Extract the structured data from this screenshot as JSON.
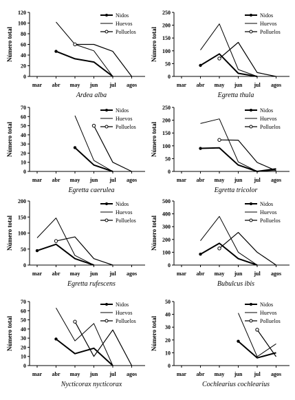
{
  "chart_data": [
    {
      "type": "line",
      "species": "Ardea alba",
      "ylabel": "Número total",
      "categories": [
        "mar",
        "abr",
        "may",
        "jun",
        "jul",
        "agos"
      ],
      "ylim": [
        0,
        120
      ],
      "yticks": [
        0,
        20,
        40,
        60,
        80,
        100,
        120
      ],
      "series": [
        {
          "name": "Nidos",
          "values": [
            null,
            47,
            33,
            27,
            0,
            null
          ]
        },
        {
          "name": "Huevos",
          "values": [
            null,
            102,
            60,
            48,
            0,
            null
          ]
        },
        {
          "name": "Polluelos",
          "values": [
            null,
            null,
            60,
            60,
            47,
            0
          ]
        }
      ]
    },
    {
      "type": "line",
      "species": "Egretta thula",
      "ylabel": "Número total",
      "categories": [
        "mar",
        "abr",
        "may",
        "jun",
        "jul",
        "agos"
      ],
      "ylim": [
        0,
        250
      ],
      "yticks": [
        0,
        50,
        100,
        150,
        200,
        250
      ],
      "series": [
        {
          "name": "Nidos",
          "values": [
            null,
            43,
            88,
            12,
            0,
            null
          ]
        },
        {
          "name": "Huevos",
          "values": [
            null,
            103,
            205,
            27,
            0,
            null
          ]
        },
        {
          "name": "Polluelos",
          "values": [
            null,
            null,
            70,
            133,
            15,
            0
          ]
        }
      ]
    },
    {
      "type": "line",
      "species": "Egretta caerulea",
      "ylabel": "Número total",
      "categories": [
        "mar",
        "abr",
        "may",
        "jun",
        "jul",
        "agos"
      ],
      "ylim": [
        0,
        70
      ],
      "yticks": [
        0,
        10,
        20,
        30,
        40,
        50,
        60,
        70
      ],
      "series": [
        {
          "name": "Nidos",
          "values": [
            null,
            null,
            26,
            7,
            0,
            null
          ]
        },
        {
          "name": "Huevos",
          "values": [
            null,
            null,
            61,
            12,
            0,
            null
          ]
        },
        {
          "name": "Polluelos",
          "values": [
            null,
            null,
            null,
            50,
            10,
            0
          ]
        }
      ]
    },
    {
      "type": "line",
      "species": "Egretta tricolor",
      "ylabel": "Número total",
      "categories": [
        "mar",
        "abr",
        "may",
        "jun",
        "jul",
        "agos"
      ],
      "ylim": [
        0,
        250
      ],
      "yticks": [
        0,
        50,
        100,
        150,
        200,
        250
      ],
      "series": [
        {
          "name": "Nidos",
          "values": [
            null,
            90,
            92,
            25,
            0,
            10
          ]
        },
        {
          "name": "Huevos",
          "values": [
            null,
            187,
            205,
            37,
            0,
            5
          ]
        },
        {
          "name": "Polluelos",
          "values": [
            null,
            null,
            123,
            122,
            35,
            3
          ]
        }
      ]
    },
    {
      "type": "line",
      "species": "Egretta rufescens",
      "ylabel": "Número total",
      "categories": [
        "mar",
        "abr",
        "may",
        "jun",
        "jul",
        "agos"
      ],
      "ylim": [
        0,
        200
      ],
      "yticks": [
        0,
        50,
        100,
        150,
        200
      ],
      "series": [
        {
          "name": "Nidos",
          "values": [
            45,
            65,
            20,
            0,
            null,
            null
          ]
        },
        {
          "name": "Huevos",
          "values": [
            85,
            147,
            30,
            0,
            null,
            null
          ]
        },
        {
          "name": "Polluelos",
          "values": [
            null,
            75,
            88,
            20,
            0,
            null
          ]
        }
      ]
    },
    {
      "type": "line",
      "species": "Bubulcus ibis",
      "ylabel": "Número total",
      "categories": [
        "mar",
        "abr",
        "may",
        "jun",
        "jul",
        "agos"
      ],
      "ylim": [
        0,
        500
      ],
      "yticks": [
        0,
        100,
        200,
        300,
        400,
        500
      ],
      "series": [
        {
          "name": "Nidos",
          "values": [
            null,
            85,
            170,
            50,
            0,
            null
          ]
        },
        {
          "name": "Huevos",
          "values": [
            null,
            190,
            380,
            100,
            0,
            null
          ]
        },
        {
          "name": "Polluelos",
          "values": [
            null,
            null,
            130,
            255,
            100,
            0
          ]
        }
      ]
    },
    {
      "type": "line",
      "species": "Nycticorax nycticorax",
      "ylabel": "Número total",
      "categories": [
        "mar",
        "abr",
        "may",
        "jun",
        "jul",
        "agos"
      ],
      "ylim": [
        0,
        70
      ],
      "yticks": [
        0,
        10,
        20,
        30,
        40,
        50,
        60,
        70
      ],
      "series": [
        {
          "name": "Nidos",
          "values": [
            null,
            29,
            13,
            19,
            0,
            null
          ]
        },
        {
          "name": "Huevos",
          "values": [
            null,
            63,
            27,
            46,
            0,
            null
          ]
        },
        {
          "name": "Polluelos",
          "values": [
            null,
            null,
            48,
            10,
            39,
            0
          ]
        }
      ]
    },
    {
      "type": "line",
      "species": "Cochlearius cochlearius",
      "ylabel": "Número total",
      "categories": [
        "mar",
        "abr",
        "may",
        "jun",
        "jul",
        "agos"
      ],
      "ylim": [
        0,
        50
      ],
      "yticks": [
        0,
        10,
        20,
        30,
        40,
        50
      ],
      "series": [
        {
          "name": "Nidos",
          "values": [
            null,
            null,
            null,
            19,
            6,
            10
          ]
        },
        {
          "name": "Huevos",
          "values": [
            null,
            null,
            null,
            41,
            7,
            17
          ]
        },
        {
          "name": "Polluelos",
          "values": [
            null,
            null,
            null,
            null,
            28,
            7
          ]
        }
      ]
    }
  ]
}
